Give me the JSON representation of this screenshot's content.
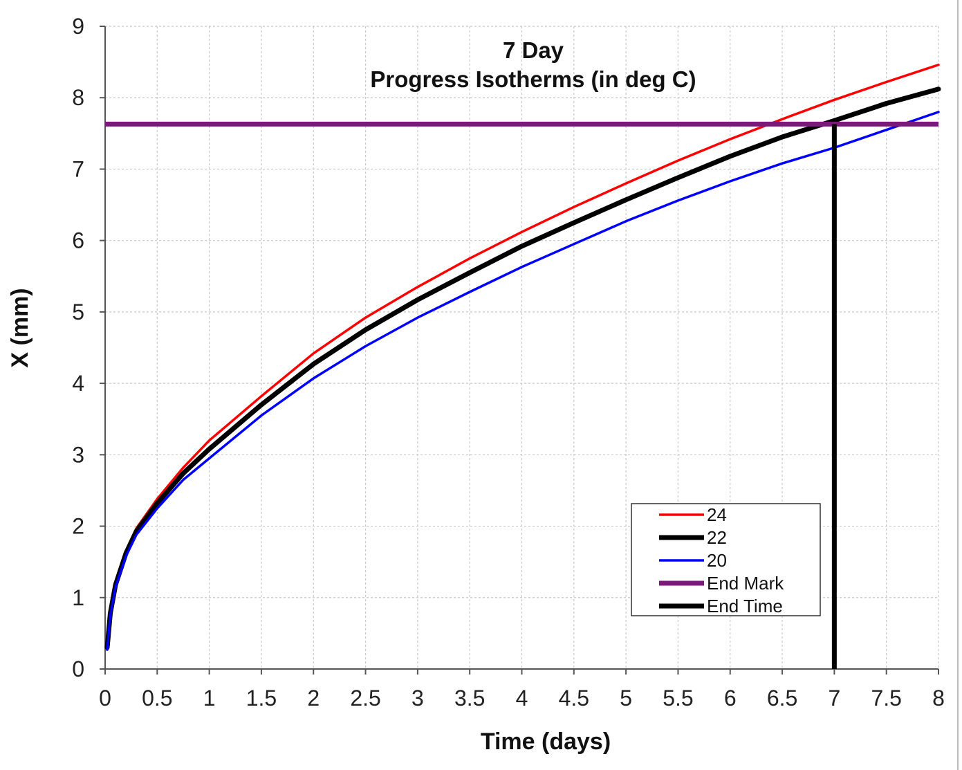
{
  "chart_data": {
    "type": "line",
    "title_lines": [
      "7 Day",
      "Progress Isotherms (in deg C)"
    ],
    "xlabel": "Time (days)",
    "ylabel": "X (mm)",
    "xlim": [
      0,
      8
    ],
    "ylim": [
      0,
      9
    ],
    "xticks": [
      "0",
      "0.5",
      "1",
      "1.5",
      "2",
      "2.5",
      "3",
      "3.5",
      "4",
      "4.5",
      "5",
      "5.5",
      "6",
      "6.5",
      "7",
      "7.5",
      "8"
    ],
    "yticks": [
      "0",
      "1",
      "2",
      "3",
      "4",
      "5",
      "6",
      "7",
      "8",
      "9"
    ],
    "grid": true,
    "legend_position": "bottom-right",
    "x": [
      0.02,
      0.05,
      0.1,
      0.2,
      0.3,
      0.5,
      0.75,
      1,
      1.5,
      2,
      2.5,
      3,
      3.5,
      4,
      4.5,
      5,
      5.5,
      6,
      6.5,
      7,
      7.5,
      8
    ],
    "series": [
      {
        "name": "24",
        "color": "#ff0000",
        "kind": "curve",
        "values": [
          0.35,
          0.8,
          1.2,
          1.65,
          1.97,
          2.38,
          2.82,
          3.2,
          3.82,
          4.42,
          4.92,
          5.35,
          5.75,
          6.12,
          6.47,
          6.8,
          7.12,
          7.42,
          7.7,
          7.97,
          8.22,
          8.46
        ]
      },
      {
        "name": "22",
        "color": "#000000",
        "kind": "curve",
        "values": [
          0.3,
          0.78,
          1.18,
          1.62,
          1.93,
          2.32,
          2.74,
          3.08,
          3.7,
          4.27,
          4.75,
          5.17,
          5.55,
          5.92,
          6.25,
          6.57,
          6.88,
          7.18,
          7.45,
          7.68,
          7.92,
          8.12
        ]
      },
      {
        "name": "20",
        "color": "#0000ff",
        "kind": "curve",
        "values": [
          0.27,
          0.75,
          1.15,
          1.58,
          1.88,
          2.25,
          2.65,
          2.95,
          3.55,
          4.07,
          4.52,
          4.92,
          5.28,
          5.63,
          5.95,
          6.27,
          6.56,
          6.83,
          7.08,
          7.3,
          7.55,
          7.8
        ]
      },
      {
        "name": "End Mark",
        "color": "#7b1a7b",
        "kind": "hline",
        "y": 7.63
      },
      {
        "name": "End Time",
        "color": "#000000",
        "kind": "vline",
        "x": 7,
        "y_range": [
          0,
          7.63
        ]
      }
    ]
  }
}
